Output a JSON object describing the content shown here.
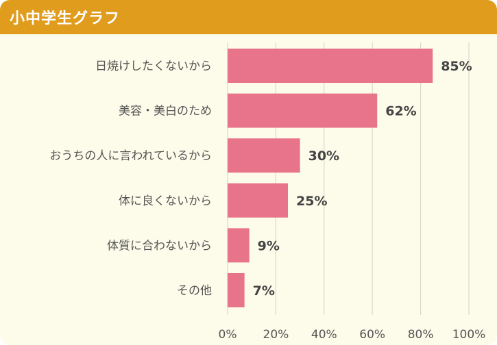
{
  "header": {
    "title": "小中学生グラフ"
  },
  "colors": {
    "header": "#e09c1d",
    "bar": "#e8748c",
    "background": "#fdfcea",
    "grid": "#d8d8d0"
  },
  "chart_data": {
    "type": "bar",
    "orientation": "horizontal",
    "categories": [
      "日焼けしたくないから",
      "美容・美白のため",
      "おうちの人に言われているから",
      "体に良くないから",
      "体質に合わないから",
      "その他"
    ],
    "values": [
      85,
      62,
      30,
      25,
      9,
      7
    ],
    "value_labels": [
      "85%",
      "62%",
      "30%",
      "25%",
      "9%",
      "7%"
    ],
    "xlim": [
      0,
      100
    ],
    "xticks": [
      0,
      20,
      40,
      60,
      80,
      100
    ],
    "xtick_labels": [
      "0%",
      "20%",
      "40%",
      "60%",
      "80%",
      "100%"
    ],
    "grid": true
  }
}
